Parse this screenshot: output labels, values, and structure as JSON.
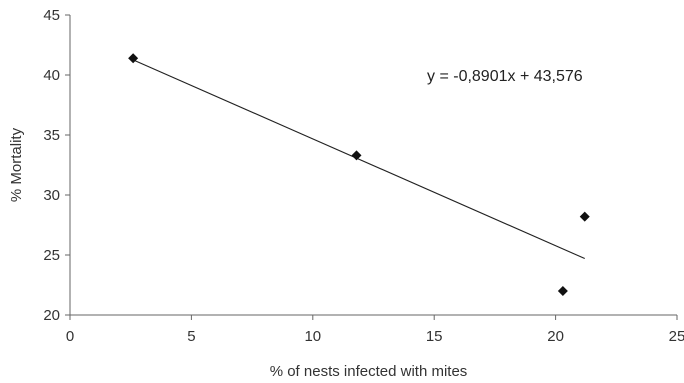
{
  "chart_data": {
    "type": "scatter",
    "xlabel": "% of nests infected with mites",
    "ylabel": "% Mortality",
    "xlim": [
      0,
      25
    ],
    "ylim": [
      20,
      45
    ],
    "xticks": [
      0,
      5,
      10,
      15,
      20,
      25
    ],
    "yticks": [
      20,
      25,
      30,
      35,
      40,
      45
    ],
    "grid": false,
    "series": [
      {
        "marker": "diamond",
        "color": "#111111",
        "points": [
          {
            "x": 2.6,
            "y": 41.4
          },
          {
            "x": 11.8,
            "y": 33.3
          },
          {
            "x": 20.3,
            "y": 22.0
          },
          {
            "x": 21.2,
            "y": 28.2
          }
        ]
      }
    ],
    "trendline": {
      "slope": -0.8901,
      "intercept": 43.576,
      "x_range": [
        2.6,
        21.2
      ],
      "equation_label": "y = -0,8901x + 43,576"
    }
  }
}
